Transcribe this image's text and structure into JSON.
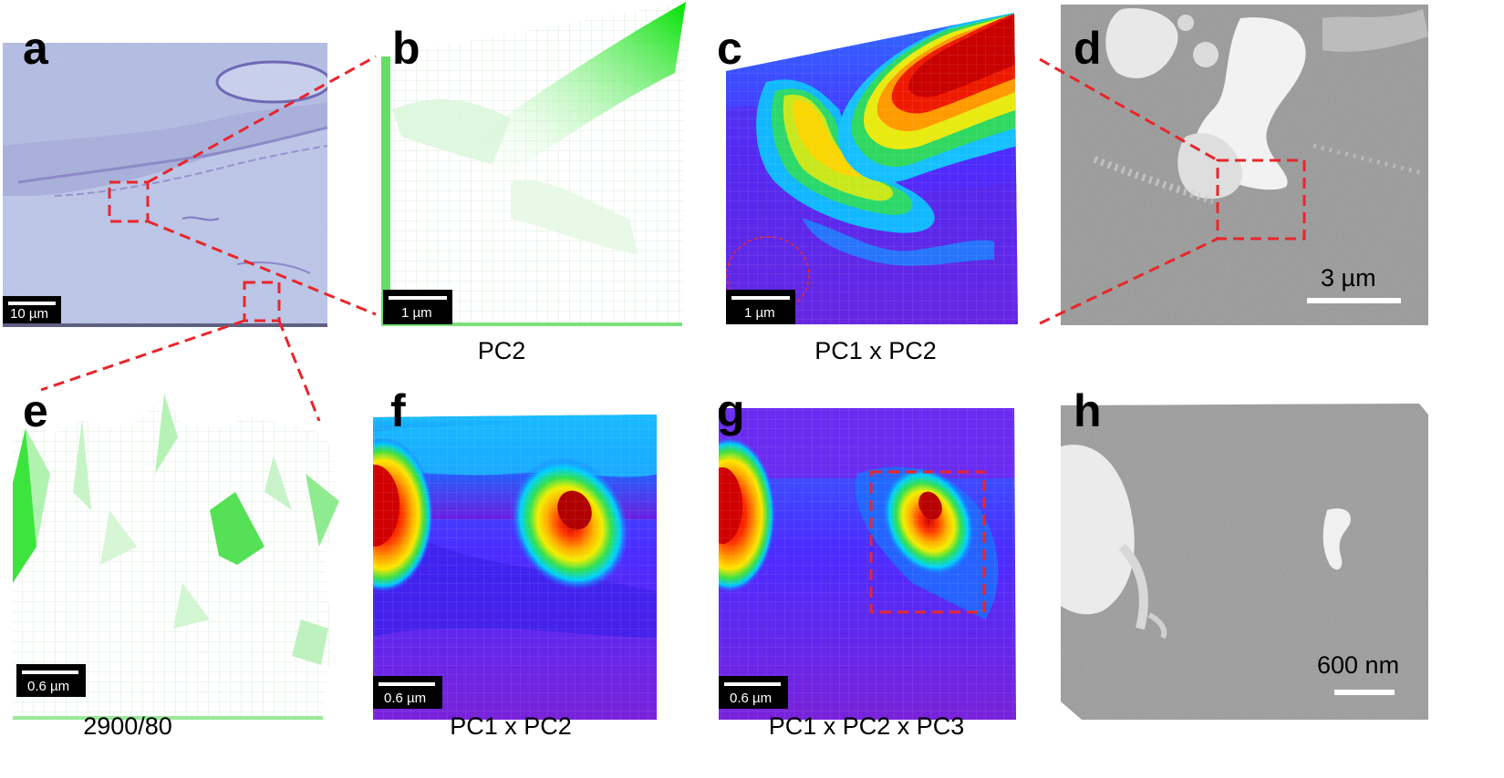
{
  "panels": {
    "a": {
      "letter": "a",
      "scalebar": "10 µm"
    },
    "b": {
      "letter": "b",
      "scalebar": "1 µm",
      "caption": "PC2"
    },
    "c": {
      "letter": "c",
      "scalebar": "1 µm",
      "caption": "PC1 x PC2"
    },
    "d": {
      "letter": "d",
      "scalebar": "3 µm"
    },
    "e": {
      "letter": "e",
      "scalebar": "0.6 µm",
      "caption": "2900/80"
    },
    "f": {
      "letter": "f",
      "scalebar": "0.6 µm",
      "caption": "PC1 x PC2"
    },
    "g": {
      "letter": "g",
      "scalebar": "0.6 µm",
      "caption": "PC1 x PC2 x PC3"
    },
    "h": {
      "letter": "h",
      "scalebar": "600 nm"
    }
  },
  "colors": {
    "annotation": "#e8262b",
    "mesh_green": "#33e833",
    "microscope_bg": "#b9c3e6",
    "sem_gray": "#9a9a9a"
  }
}
